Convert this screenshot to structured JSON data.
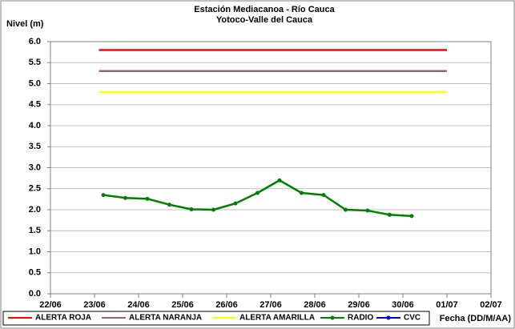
{
  "chart_data": {
    "type": "line",
    "title": "Estación Mediacanoa - Río Cauca",
    "subtitle": "Yotoco-Valle del Cauca",
    "y_label": "Nivel (m)",
    "x_label": "Fecha (DD/M/AA)",
    "xlim": [
      22,
      32
    ],
    "xticks": [
      {
        "value": 22,
        "label": "22/06"
      },
      {
        "value": 23,
        "label": "23/06"
      },
      {
        "value": 24,
        "label": "24/06"
      },
      {
        "value": 25,
        "label": "25/06"
      },
      {
        "value": 26,
        "label": "26/06"
      },
      {
        "value": 27,
        "label": "27/06"
      },
      {
        "value": 28,
        "label": "28/06"
      },
      {
        "value": 29,
        "label": "29/06"
      },
      {
        "value": 30,
        "label": "30/06"
      },
      {
        "value": 31,
        "label": "01/07"
      },
      {
        "value": 32,
        "label": "02/07"
      }
    ],
    "ylim": [
      0,
      6
    ],
    "yticks": [
      {
        "value": 0,
        "label": "0.0"
      },
      {
        "value": 0.5,
        "label": "0.5"
      },
      {
        "value": 1,
        "label": "1.0"
      },
      {
        "value": 1.5,
        "label": "1.5"
      },
      {
        "value": 2,
        "label": "2.0"
      },
      {
        "value": 2.5,
        "label": "2.5"
      },
      {
        "value": 3,
        "label": "3.0"
      },
      {
        "value": 3.5,
        "label": "3.5"
      },
      {
        "value": 4,
        "label": "4.0"
      },
      {
        "value": 4.5,
        "label": "4.5"
      },
      {
        "value": 5,
        "label": "5.0"
      },
      {
        "value": 5.5,
        "label": "5.5"
      },
      {
        "value": 6,
        "label": "6.0"
      }
    ],
    "grid": true,
    "series": [
      {
        "name": "ALERTA ROJA",
        "color": "#ff0000",
        "x": [
          23.1,
          31
        ],
        "values": [
          5.8,
          5.8
        ]
      },
      {
        "name": "ALERTA NARANJA",
        "color": "#996666",
        "x": [
          23.1,
          31
        ],
        "values": [
          5.3,
          5.3
        ]
      },
      {
        "name": "ALERTA AMARILLA",
        "color": "#ffff00",
        "x": [
          23.1,
          31
        ],
        "values": [
          4.8,
          4.8
        ]
      },
      {
        "name": "RADIO",
        "color": "#008000",
        "marker": true,
        "x": [
          23.2,
          23.7,
          24.2,
          24.7,
          25.2,
          25.7,
          26.2,
          26.7,
          27.2,
          27.7,
          28.2,
          28.7,
          29.2,
          29.7,
          30.2
        ],
        "values": [
          2.35,
          2.28,
          2.26,
          2.12,
          2.01,
          2.0,
          2.15,
          2.4,
          2.7,
          2.4,
          2.35,
          2.0,
          1.98,
          1.88,
          1.85
        ]
      },
      {
        "name": "CVC",
        "color": "#0000cc",
        "marker": true,
        "x": [],
        "values": []
      }
    ]
  }
}
